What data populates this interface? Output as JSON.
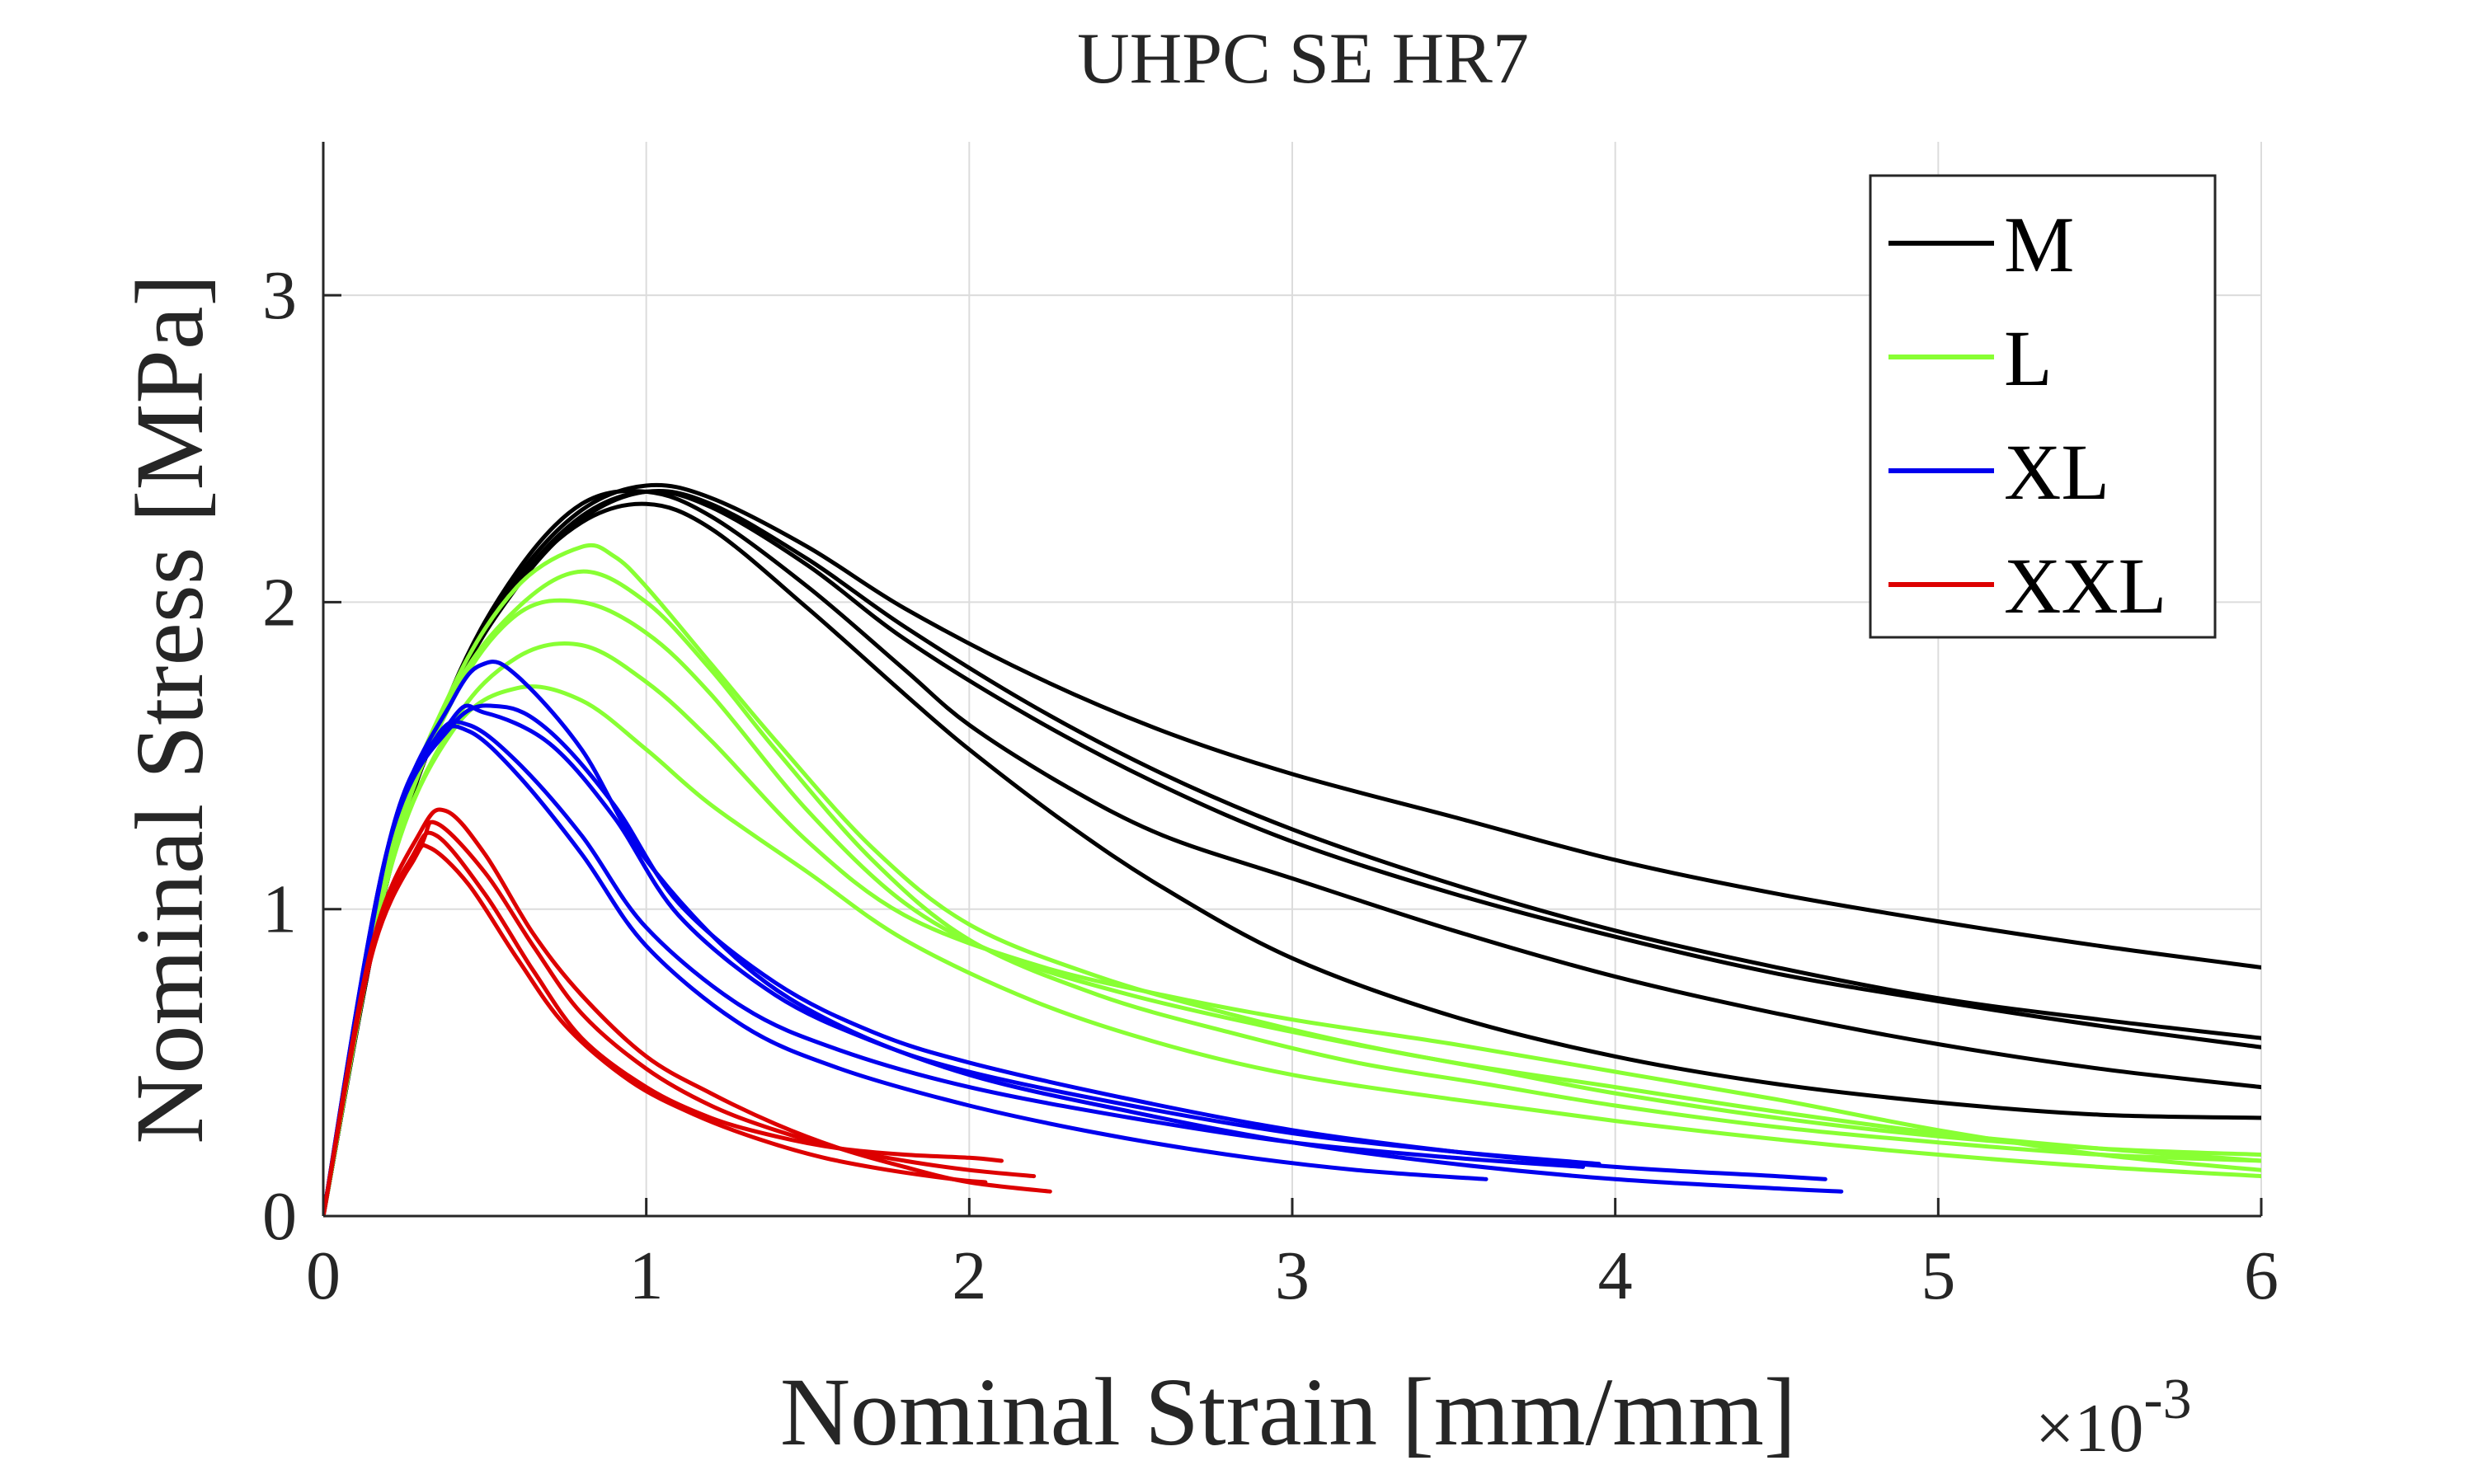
{
  "chart_data": {
    "type": "line",
    "title": "UHPC SE HR7",
    "xlabel": "Nominal Strain [mm/mm]",
    "x_exponent_base": "×10",
    "x_exponent_power": "-3",
    "ylabel": "Nominal Stress [MPa]",
    "xlim": [
      0,
      6
    ],
    "ylim": [
      0,
      3.5
    ],
    "xticks": [
      0,
      1,
      2,
      3,
      4,
      5,
      6
    ],
    "xtick_labels": [
      "0",
      "1",
      "2",
      "3",
      "4",
      "5",
      "6"
    ],
    "yticks": [
      0,
      1,
      2,
      3
    ],
    "ytick_labels": [
      "0",
      "1",
      "2",
      "3"
    ],
    "grid": true,
    "legend_position": "top-right",
    "series": [
      {
        "name": "M",
        "color": "#000000",
        "curves": [
          {
            "x": [
              0,
              0.2,
              0.4,
              0.6,
              0.8,
              1.0,
              1.2,
              1.5,
              1.8,
              2.2,
              2.6,
              3.0,
              3.5,
              4.0,
              4.5,
              5.0,
              5.5,
              6.0
            ],
            "y": [
              0,
              1.1,
              1.72,
              2.08,
              2.3,
              2.38,
              2.34,
              2.18,
              1.98,
              1.76,
              1.58,
              1.44,
              1.3,
              1.16,
              1.05,
              0.96,
              0.88,
              0.81
            ]
          },
          {
            "x": [
              0,
              0.2,
              0.4,
              0.6,
              0.8,
              1.0,
              1.2,
              1.5,
              1.8,
              2.2,
              2.6,
              3.0,
              3.5,
              4.0,
              4.5,
              5.0,
              5.5,
              6.0
            ],
            "y": [
              0,
              1.1,
              1.7,
              2.05,
              2.27,
              2.36,
              2.32,
              2.14,
              1.92,
              1.66,
              1.44,
              1.26,
              1.08,
              0.93,
              0.81,
              0.71,
              0.64,
              0.58
            ]
          },
          {
            "x": [
              0,
              0.2,
              0.4,
              0.6,
              0.8,
              1.0,
              1.2,
              1.5,
              1.8,
              2.2,
              2.6,
              3.0,
              3.5,
              4.0,
              4.5,
              5.0,
              5.5,
              6.0
            ],
            "y": [
              0,
              1.1,
              1.7,
              2.06,
              2.28,
              2.36,
              2.31,
              2.12,
              1.88,
              1.62,
              1.4,
              1.22,
              1.05,
              0.91,
              0.79,
              0.7,
              0.62,
              0.55
            ]
          },
          {
            "x": [
              0,
              0.2,
              0.4,
              0.6,
              0.8,
              1.0,
              1.2,
              1.5,
              1.8,
              2.0,
              2.3,
              2.6,
              3.0,
              3.5,
              4.0,
              4.5,
              5.0,
              5.5,
              6.0
            ],
            "y": [
              0,
              1.1,
              1.72,
              2.1,
              2.32,
              2.36,
              2.28,
              2.05,
              1.78,
              1.6,
              1.4,
              1.24,
              1.1,
              0.93,
              0.78,
              0.66,
              0.56,
              0.48,
              0.42
            ]
          },
          {
            "x": [
              0,
              0.2,
              0.4,
              0.6,
              0.8,
              1.0,
              1.2,
              1.5,
              1.8,
              2.0,
              2.3,
              2.6,
              3.0,
              3.5,
              4.0,
              4.5,
              5.0,
              5.5,
              6.0
            ],
            "y": [
              0,
              1.1,
              1.7,
              2.06,
              2.26,
              2.32,
              2.24,
              1.98,
              1.7,
              1.52,
              1.28,
              1.07,
              0.84,
              0.65,
              0.52,
              0.43,
              0.37,
              0.33,
              0.32
            ]
          }
        ]
      },
      {
        "name": "L",
        "color": "#88ff33",
        "curves": [
          {
            "x": [
              0,
              0.2,
              0.4,
              0.6,
              0.8,
              0.9,
              1.0,
              1.2,
              1.4,
              1.7,
              2.0,
              2.4,
              2.8,
              3.2,
              3.6,
              4.0,
              4.5,
              5.0,
              5.5,
              6.0
            ],
            "y": [
              0,
              1.15,
              1.72,
              2.05,
              2.18,
              2.15,
              2.05,
              1.8,
              1.55,
              1.2,
              0.95,
              0.78,
              0.66,
              0.56,
              0.48,
              0.4,
              0.32,
              0.26,
              0.22,
              0.2
            ]
          },
          {
            "x": [
              0,
              0.2,
              0.4,
              0.6,
              0.8,
              1.0,
              1.2,
              1.4,
              1.7,
              2.0,
              2.4,
              2.8,
              3.2,
              3.6,
              4.0,
              4.5,
              5.0,
              5.5,
              6.0
            ],
            "y": [
              0,
              1.15,
              1.7,
              1.98,
              2.1,
              2.0,
              1.78,
              1.52,
              1.16,
              0.9,
              0.72,
              0.6,
              0.5,
              0.43,
              0.36,
              0.29,
              0.24,
              0.2,
              0.18
            ]
          },
          {
            "x": [
              0,
              0.2,
              0.4,
              0.6,
              0.8,
              1.0,
              1.2,
              1.5,
              1.8,
              2.1,
              2.5,
              3.0,
              3.5,
              4.0,
              4.5,
              5.0,
              5.5,
              6.0
            ],
            "y": [
              0,
              1.12,
              1.68,
              1.96,
              2.0,
              1.9,
              1.7,
              1.32,
              1.02,
              0.85,
              0.72,
              0.6,
              0.5,
              0.42,
              0.34,
              0.27,
              0.22,
              0.18
            ]
          },
          {
            "x": [
              0,
              0.2,
              0.4,
              0.6,
              0.8,
              1.0,
              1.2,
              1.5,
              1.8,
              2.2,
              2.6,
              3.0,
              3.5,
              4.0,
              4.5,
              5.0,
              5.5,
              6.0
            ],
            "y": [
              0,
              1.1,
              1.6,
              1.82,
              1.86,
              1.74,
              1.55,
              1.22,
              0.98,
              0.82,
              0.72,
              0.64,
              0.56,
              0.47,
              0.38,
              0.28,
              0.2,
              0.15
            ]
          },
          {
            "x": [
              0,
              0.2,
              0.4,
              0.6,
              0.8,
              1.0,
              1.2,
              1.5,
              1.8,
              2.2,
              2.6,
              3.0,
              3.5,
              4.0,
              4.5,
              5.0,
              5.5,
              6.0
            ],
            "y": [
              0,
              1.1,
              1.58,
              1.72,
              1.68,
              1.52,
              1.34,
              1.12,
              0.9,
              0.7,
              0.56,
              0.46,
              0.38,
              0.31,
              0.25,
              0.2,
              0.16,
              0.13
            ]
          }
        ]
      },
      {
        "name": "XL",
        "color": "#0000ee",
        "curves": [
          {
            "x": [
              0,
              0.2,
              0.4,
              0.5,
              0.6,
              0.8,
              1.0,
              1.3,
              1.6,
              2.0,
              2.5,
              3.0,
              3.5,
              4.0,
              4.5,
              4.7
            ],
            "y": [
              0,
              1.2,
              1.68,
              1.8,
              1.76,
              1.52,
              1.16,
              0.82,
              0.62,
              0.46,
              0.34,
              0.24,
              0.17,
              0.12,
              0.09,
              0.08
            ]
          },
          {
            "x": [
              0,
              0.2,
              0.4,
              0.55,
              0.7,
              0.9,
              1.1,
              1.4,
              1.7,
              2.0,
              2.5,
              3.0,
              3.5,
              4.0,
              4.5,
              4.65
            ],
            "y": [
              0,
              1.2,
              1.6,
              1.66,
              1.58,
              1.34,
              1.02,
              0.76,
              0.6,
              0.5,
              0.38,
              0.28,
              0.21,
              0.16,
              0.13,
              0.12
            ]
          },
          {
            "x": [
              0,
              0.2,
              0.4,
              0.5,
              0.7,
              0.9,
              1.1,
              1.4,
              1.7,
              2.0,
              2.5,
              3.0,
              3.5,
              3.95
            ],
            "y": [
              0,
              1.2,
              1.62,
              1.64,
              1.54,
              1.3,
              0.98,
              0.72,
              0.57,
              0.47,
              0.36,
              0.27,
              0.21,
              0.17
            ]
          },
          {
            "x": [
              0,
              0.2,
              0.35,
              0.45,
              0.6,
              0.8,
              1.0,
              1.3,
              1.6,
              2.0,
              2.5,
              3.0,
              3.5,
              3.9
            ],
            "y": [
              0,
              1.2,
              1.56,
              1.6,
              1.48,
              1.24,
              0.94,
              0.68,
              0.54,
              0.42,
              0.32,
              0.24,
              0.19,
              0.16
            ]
          },
          {
            "x": [
              0,
              0.2,
              0.35,
              0.45,
              0.6,
              0.8,
              1.0,
              1.3,
              1.6,
              2.0,
              2.4,
              2.8,
              3.2,
              3.6
            ],
            "y": [
              0,
              1.2,
              1.55,
              1.58,
              1.44,
              1.18,
              0.88,
              0.62,
              0.48,
              0.36,
              0.27,
              0.2,
              0.15,
              0.12
            ]
          }
        ]
      },
      {
        "name": "XXL",
        "color": "#dd0000",
        "curves": [
          {
            "x": [
              0,
              0.15,
              0.3,
              0.38,
              0.5,
              0.65,
              0.8,
              1.0,
              1.2,
              1.4,
              1.6,
              1.8,
              2.0,
              2.25
            ],
            "y": [
              0,
              0.88,
              1.25,
              1.32,
              1.18,
              0.92,
              0.72,
              0.52,
              0.4,
              0.3,
              0.22,
              0.16,
              0.11,
              0.08
            ]
          },
          {
            "x": [
              0,
              0.15,
              0.3,
              0.35,
              0.5,
              0.65,
              0.8,
              1.0,
              1.2,
              1.4,
              1.6,
              1.8,
              2.0,
              2.2
            ],
            "y": [
              0,
              0.85,
              1.2,
              1.28,
              1.12,
              0.88,
              0.66,
              0.48,
              0.36,
              0.28,
              0.22,
              0.18,
              0.15,
              0.13
            ]
          },
          {
            "x": [
              0,
              0.15,
              0.28,
              0.35,
              0.5,
              0.65,
              0.8,
              1.0,
              1.2,
              1.4,
              1.6,
              1.8,
              2.0,
              2.1
            ],
            "y": [
              0,
              0.86,
              1.18,
              1.24,
              1.05,
              0.8,
              0.58,
              0.42,
              0.32,
              0.26,
              0.22,
              0.2,
              0.19,
              0.18
            ]
          },
          {
            "x": [
              0,
              0.15,
              0.28,
              0.33,
              0.45,
              0.6,
              0.75,
              0.95,
              1.15,
              1.35,
              1.55,
              1.75,
              1.95,
              2.05
            ],
            "y": [
              0,
              0.86,
              1.16,
              1.2,
              1.08,
              0.84,
              0.62,
              0.44,
              0.33,
              0.25,
              0.19,
              0.15,
              0.12,
              0.11
            ]
          }
        ]
      }
    ]
  }
}
